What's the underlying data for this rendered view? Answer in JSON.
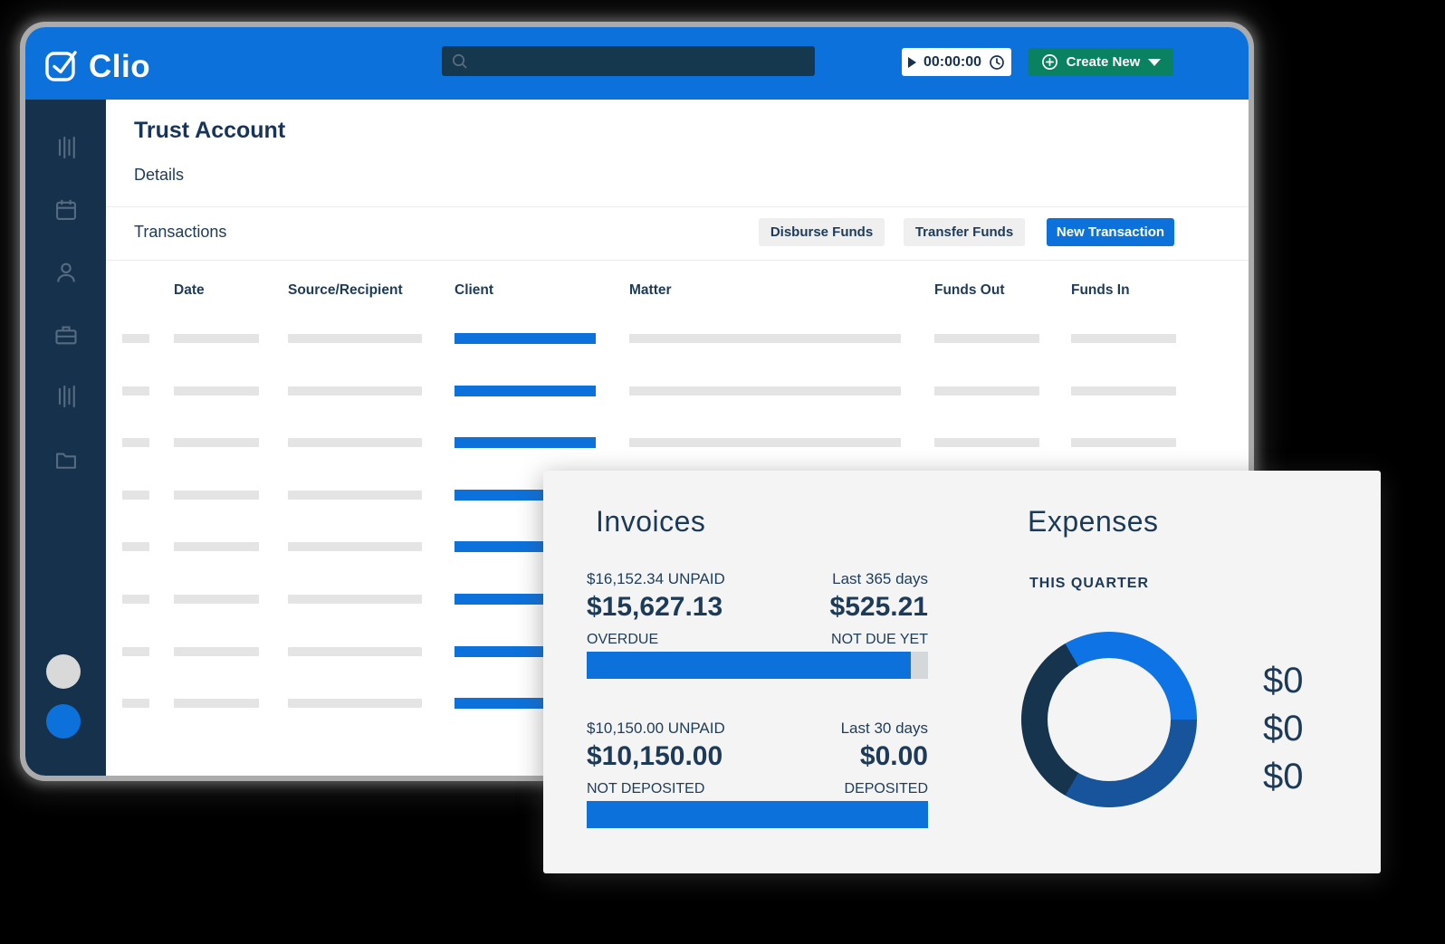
{
  "header": {
    "brand": "Clio",
    "search": {
      "placeholder": "",
      "value": ""
    },
    "timer_value": "00:00:00",
    "create_new_label": "Create New"
  },
  "sidebar": {
    "icons": [
      "bars-icon",
      "calendar-icon",
      "person-icon",
      "briefcase-icon",
      "bars-icon",
      "folder-icon"
    ],
    "avatar_circles": [
      "gray",
      "blue"
    ]
  },
  "page": {
    "title": "Trust Account",
    "subtitle": "Details",
    "section_title": "Transactions",
    "buttons": {
      "disburse": "Disburse Funds",
      "transfer": "Transfer Funds",
      "new_transaction": "New Transaction"
    }
  },
  "table": {
    "columns": [
      "Date",
      "Source/Recipient",
      "Client",
      "Matter",
      "Funds Out",
      "Funds In"
    ],
    "placeholder_row_count": 8,
    "highlight_column": "Client"
  },
  "overlay_card": {
    "invoices": {
      "title": "Invoices",
      "blocks": [
        {
          "left_label": "$16,152.34 UNPAID",
          "right_label": "Last 365 days",
          "left_value": "$15,627.13",
          "right_value": "$525.21",
          "left_sub": "OVERDUE",
          "right_sub": "NOT DUE YET",
          "progress_pct": 95
        },
        {
          "left_label": "$10,150.00 UNPAID",
          "right_label": "Last 30 days",
          "left_value": "$10,150.00",
          "right_value": "$0.00",
          "left_sub": "NOT DEPOSITED",
          "right_sub": "DEPOSITED",
          "progress_pct": 100
        }
      ]
    },
    "expenses": {
      "title": "Expenses",
      "period_label": "THIS QUARTER",
      "legend_values": [
        "$0",
        "$0",
        "$0"
      ]
    }
  },
  "chart_data": {
    "type": "pie",
    "variant": "donut",
    "title": "Expenses — THIS QUARTER",
    "start_angle_deg": -30,
    "legend_position": "right",
    "segments": [
      {
        "name": "segment-1",
        "fraction": 0.3333,
        "color": "#0e73e4",
        "value_label": "$0"
      },
      {
        "name": "segment-2",
        "fraction": 0.3333,
        "color": "#17549b",
        "value_label": "$0"
      },
      {
        "name": "segment-3",
        "fraction": 0.3334,
        "color": "#17344e",
        "value_label": "$0"
      }
    ]
  },
  "colors": {
    "accent_blue": "#0d71dc",
    "green": "#0a8161",
    "navy_text": "#1d3b58",
    "sidebar_bg": "#16314b",
    "card_bg": "#f5f4f4",
    "placeholder_gray": "#e4e4e4",
    "track_gray": "#d5d8db"
  }
}
